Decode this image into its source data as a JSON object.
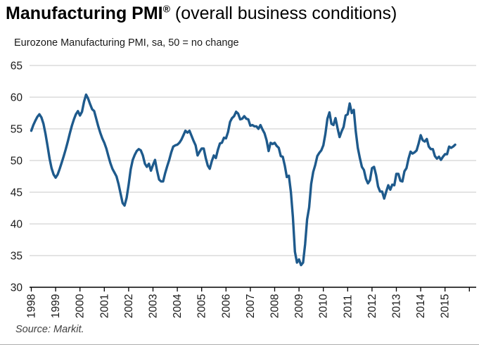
{
  "header": {
    "title_bold": "Manufacturing PMI",
    "title_sup": "®",
    "title_rest": " (overall business conditions)",
    "subtitle": "Eurozone Manufacturing PMI, sa, 50 = no change"
  },
  "footer": {
    "source": "Source: Markit."
  },
  "colors": {
    "line": "#1e5a8c",
    "grid": "#c9c9c9",
    "axis": "#000000",
    "tick_text": "#1a1a1a"
  },
  "chart_data": {
    "type": "line",
    "title": "Manufacturing PMI (overall business conditions)",
    "subtitle": "Eurozone Manufacturing PMI, sa, 50 = no change",
    "xlabel": "",
    "ylabel": "",
    "ylim": [
      30,
      65
    ],
    "yticks": [
      30,
      35,
      40,
      45,
      50,
      55,
      60,
      65
    ],
    "grid": "horizontal",
    "legend_position": "none",
    "frequency": "monthly",
    "x_start": "1998-01",
    "x_end": "2015-06",
    "x_start_year": 1998,
    "xtick_labels": [
      "1998",
      "1999",
      "2000",
      "2001",
      "2002",
      "2003",
      "2004",
      "2005",
      "2006",
      "2007",
      "2008",
      "2009",
      "2010",
      "2011",
      "2012",
      "2013",
      "2014",
      "2015"
    ],
    "series": [
      {
        "name": "Eurozone Manufacturing PMI",
        "values": [
          54.7,
          55.6,
          56.3,
          56.9,
          57.3,
          56.8,
          55.8,
          54.2,
          52.3,
          50.3,
          48.8,
          47.8,
          47.3,
          47.8,
          48.7,
          49.7,
          50.7,
          51.8,
          53.0,
          54.3,
          55.5,
          56.5,
          57.3,
          57.8,
          57.1,
          57.7,
          59.3,
          60.4,
          59.8,
          58.9,
          58.1,
          57.8,
          56.6,
          55.4,
          54.4,
          53.5,
          52.8,
          51.9,
          50.7,
          49.6,
          48.7,
          48.1,
          47.5,
          46.3,
          44.8,
          43.3,
          42.9,
          44.1,
          46.2,
          48.6,
          50.1,
          50.9,
          51.5,
          51.8,
          51.6,
          50.8,
          49.5,
          49.0,
          49.5,
          48.4,
          49.3,
          50.1,
          48.4,
          47.0,
          46.7,
          46.7,
          48.0,
          49.1,
          50.1,
          51.3,
          52.2,
          52.4,
          52.5,
          52.8,
          53.3,
          54.0,
          54.7,
          54.4,
          54.7,
          53.9,
          53.1,
          52.4,
          50.8,
          51.4,
          51.9,
          51.9,
          50.4,
          49.2,
          48.7,
          49.9,
          50.8,
          50.4,
          51.7,
          52.7,
          52.8,
          53.6,
          53.5,
          54.5,
          56.1,
          56.7,
          57.0,
          57.7,
          57.4,
          56.5,
          56.6,
          57.0,
          56.6,
          56.5,
          55.5,
          55.6,
          55.4,
          55.4,
          55.0,
          55.6,
          54.9,
          54.3,
          53.2,
          51.5,
          52.8,
          52.6,
          52.8,
          52.3,
          52.0,
          50.7,
          50.6,
          49.2,
          47.4,
          47.6,
          45.0,
          41.1,
          35.6,
          33.9,
          34.4,
          33.5,
          33.9,
          36.8,
          40.7,
          42.6,
          46.3,
          48.2,
          49.3,
          50.7,
          51.2,
          51.6,
          52.4,
          54.2,
          56.6,
          57.6,
          55.8,
          55.6,
          56.7,
          55.1,
          53.7,
          54.6,
          55.3,
          57.1,
          57.3,
          59.0,
          57.5,
          58.0,
          54.6,
          52.0,
          50.4,
          49.0,
          48.5,
          47.1,
          46.4,
          46.9,
          48.8,
          49.0,
          47.7,
          45.9,
          45.1,
          45.1,
          44.0,
          45.1,
          46.1,
          45.4,
          46.2,
          46.1,
          47.9,
          47.9,
          46.8,
          46.7,
          48.3,
          48.8,
          50.3,
          51.4,
          51.1,
          51.3,
          51.6,
          52.7,
          54.0,
          53.2,
          53.0,
          53.4,
          52.2,
          51.8,
          51.8,
          50.7,
          50.3,
          50.6,
          50.1,
          50.6,
          51.0,
          51.0,
          52.2,
          52.0,
          52.2,
          52.5
        ]
      }
    ]
  }
}
